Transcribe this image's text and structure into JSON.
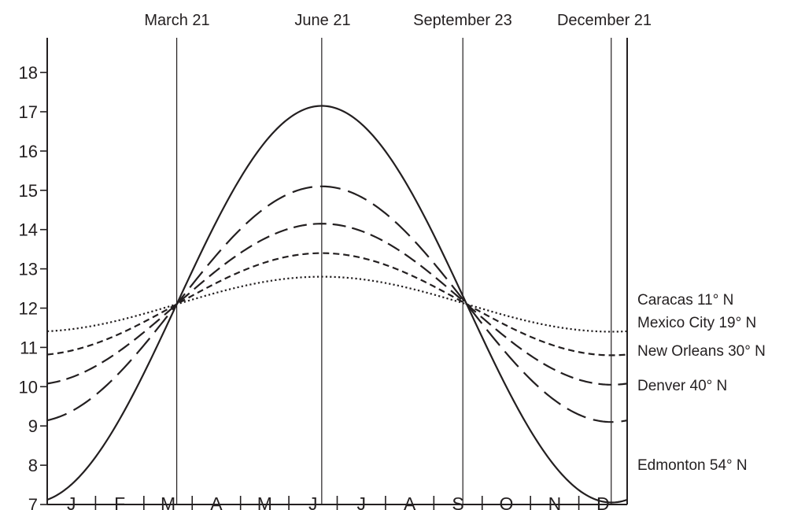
{
  "chart_data": {
    "type": "line",
    "title": "",
    "xlabel": "",
    "ylabel": "",
    "ylim": [
      7,
      18
    ],
    "xlim": [
      0,
      12
    ],
    "y_ticks": [
      7,
      8,
      9,
      10,
      11,
      12,
      13,
      14,
      15,
      16,
      17,
      18
    ],
    "months": [
      "J",
      "F",
      "M",
      "A",
      "M",
      "J",
      "J",
      "A",
      "S",
      "O",
      "N",
      "D"
    ],
    "markers": [
      {
        "label": "March 21",
        "x": 2.68
      },
      {
        "label": "June 21",
        "x": 5.68
      },
      {
        "label": "September 23",
        "x": 8.6
      },
      {
        "label": "December 21",
        "x": 11.67
      }
    ],
    "grid": false,
    "legend_placement": "right",
    "series": [
      {
        "name": "Caracas 11° N",
        "style": "dotted",
        "mean": 12.1,
        "amplitude": 0.7,
        "x": [
          0,
          2.68,
          5.68,
          8.6,
          11.67,
          12
        ],
        "values": [
          11.4,
          12.1,
          12.8,
          12.1,
          11.4,
          11.45
        ]
      },
      {
        "name": "Mexico City 19° N",
        "style": "short-dash",
        "mean": 12.1,
        "amplitude": 1.3,
        "x": [
          0,
          2.68,
          5.68,
          8.6,
          11.67,
          12
        ],
        "values": [
          10.8,
          12.1,
          13.4,
          12.1,
          10.8,
          10.85
        ]
      },
      {
        "name": "New Orleans 30° N",
        "style": "medium-dash",
        "mean": 12.1,
        "amplitude": 2.05,
        "x": [
          0,
          2.68,
          5.68,
          8.6,
          11.67,
          12
        ],
        "values": [
          10.05,
          12.1,
          14.15,
          12.1,
          10.05,
          10.1
        ]
      },
      {
        "name": "Denver 40° N",
        "style": "long-dash",
        "mean": 12.1,
        "amplitude": 3.0,
        "x": [
          0,
          2.68,
          5.68,
          8.6,
          11.67,
          12
        ],
        "values": [
          9.15,
          12.1,
          15.1,
          12.1,
          9.1,
          9.2
        ]
      },
      {
        "name": "Edmonton 54° N",
        "style": "solid",
        "mean": 12.1,
        "amplitude": 5.05,
        "x": [
          0,
          2.68,
          5.68,
          8.6,
          11.67,
          12
        ],
        "values": [
          7.0,
          12.1,
          17.15,
          12.1,
          7.05,
          7.2
        ]
      }
    ]
  }
}
